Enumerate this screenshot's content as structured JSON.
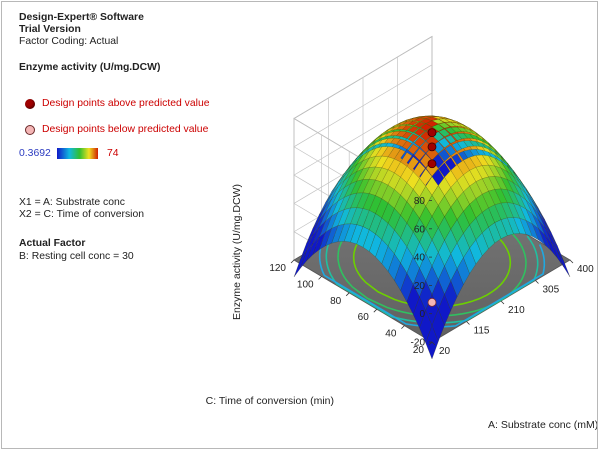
{
  "header": {
    "software": "Design-Expert® Software",
    "version": "Trial Version",
    "coding": "Factor Coding: Actual"
  },
  "legend": {
    "title": "Enzyme activity (U/mg.DCW)",
    "above_label": "Design points above predicted value",
    "below_label": "Design points below predicted value",
    "scale_min": "0.3692",
    "scale_max": "74"
  },
  "factors": {
    "x1": "X1 = A: Substrate conc",
    "x2": "X2 = C: Time of conversion"
  },
  "actual_factor": {
    "title": "Actual Factor",
    "value": "B: Resting cell conc = 30"
  },
  "colors": {
    "above_point": "#a00000",
    "below_point": "#f4b6b6",
    "contour": "#e8d800",
    "floor": "#6e6e6e",
    "low": "#1018c8",
    "mid": "#30c030",
    "high": "#d02000"
  },
  "chart_data": {
    "type": "surface",
    "title": "",
    "zlabel": "Enzyme activity (U/mg.DCW)",
    "xlabel": "A: Substrate conc (mM)",
    "ylabel": "C: Time of conversion (min)",
    "x_ticks": [
      "20",
      "115",
      "210",
      "305",
      "400"
    ],
    "y_ticks": [
      "20",
      "40",
      "60",
      "80",
      "100",
      "120"
    ],
    "z_ticks": [
      "-20",
      "0",
      "20",
      "40",
      "60",
      "80"
    ],
    "xlim": [
      20,
      400
    ],
    "ylim": [
      20,
      120
    ],
    "zlim": [
      -20,
      80
    ],
    "color_range": [
      0.3692,
      74
    ],
    "surface_peak": 74,
    "design_points": [
      {
        "x": 210,
        "y": 70,
        "z": 70,
        "position": "above"
      },
      {
        "x": 210,
        "y": 70,
        "z": 48,
        "position": "above"
      },
      {
        "x": 400,
        "y": 120,
        "z": 2,
        "position": "above"
      },
      {
        "x": 20,
        "y": 20,
        "z": 8,
        "position": "below"
      }
    ]
  }
}
